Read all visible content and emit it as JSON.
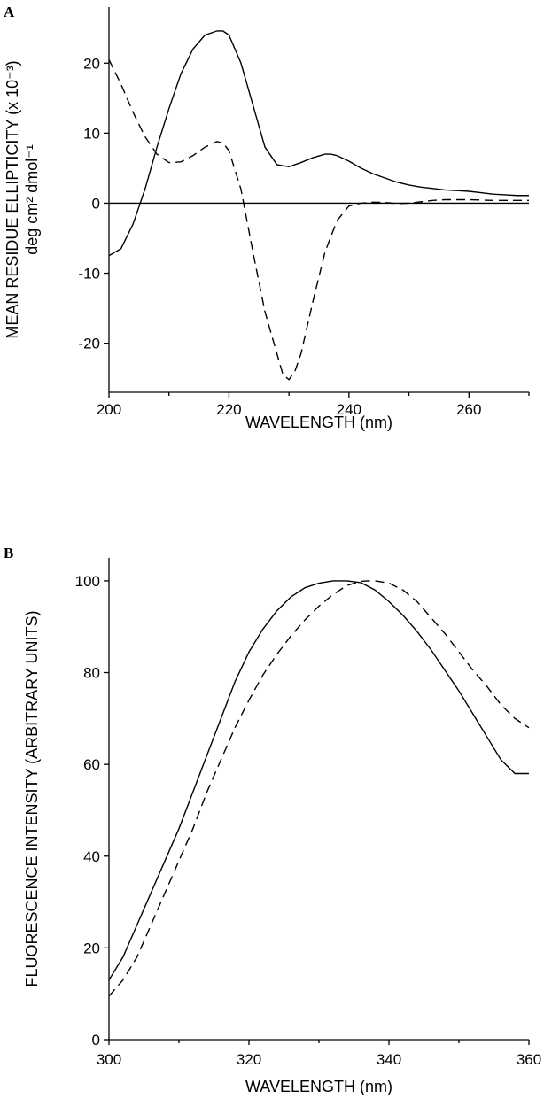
{
  "chart_data": [
    {
      "type": "line",
      "panel_label": "A",
      "xlabel": "WAVELENGTH (nm)",
      "ylabel_line1": "MEAN RESIDUE ELLIPTICITY (x 10⁻³)",
      "ylabel_line2": "deg cm² dmol⁻¹",
      "xlim": [
        200,
        270
      ],
      "ylim": [
        -27,
        28
      ],
      "xticks": [
        200,
        220,
        240,
        260
      ],
      "xticks_minor": [
        210,
        230,
        250,
        270
      ],
      "yticks": [
        20,
        10,
        0,
        -10,
        -20
      ],
      "ytick_labels": [
        "20",
        "10",
        "0",
        "-10",
        "-20"
      ],
      "zero_line": true,
      "series": [
        {
          "style": "solid",
          "x": [
            200,
            202,
            204,
            206,
            208,
            210,
            212,
            214,
            216,
            218,
            219,
            220,
            222,
            224,
            226,
            228,
            230,
            232,
            234,
            236,
            237,
            238,
            240,
            242,
            244,
            246,
            248,
            250,
            252,
            254,
            256,
            258,
            260,
            262,
            264,
            266,
            268,
            270
          ],
          "y": [
            -7.5,
            -6.5,
            -3,
            2,
            8,
            13.5,
            18.5,
            22,
            24,
            24.6,
            24.6,
            24,
            20,
            14,
            8,
            5.5,
            5.2,
            5.8,
            6.5,
            7,
            7,
            6.8,
            6,
            5,
            4.2,
            3.6,
            3,
            2.6,
            2.3,
            2.1,
            1.9,
            1.8,
            1.7,
            1.5,
            1.3,
            1.2,
            1.1,
            1.1
          ]
        },
        {
          "style": "dashed",
          "x": [
            200,
            202,
            204,
            206,
            208,
            210,
            212,
            214,
            216,
            218,
            219,
            220,
            222,
            224,
            226,
            228,
            229,
            230,
            231,
            232,
            234,
            236,
            238,
            240,
            242,
            244,
            246,
            248,
            250,
            252,
            254,
            256,
            258,
            260,
            262,
            264,
            266,
            268,
            270
          ],
          "y": [
            20.5,
            17,
            13,
            9.5,
            7,
            5.8,
            5.9,
            6.8,
            8,
            8.8,
            8.6,
            7.5,
            2,
            -7,
            -15.5,
            -21.5,
            -24.5,
            -25.2,
            -24,
            -21.5,
            -14,
            -7,
            -2.5,
            -0.4,
            0,
            0.15,
            0.1,
            -0.05,
            0,
            0.2,
            0.4,
            0.5,
            0.5,
            0.5,
            0.45,
            0.4,
            0.4,
            0.4,
            0.4
          ]
        }
      ]
    },
    {
      "type": "line",
      "panel_label": "B",
      "xlabel": "WAVELENGTH (nm)",
      "ylabel": "FLUORESCENCE INTENSITY (ARBITRARY UNITS)",
      "xlim": [
        300,
        360
      ],
      "ylim": [
        0,
        105
      ],
      "xticks": [
        300,
        320,
        340,
        360
      ],
      "xticks_minor": [
        310,
        330,
        350
      ],
      "yticks": [
        0,
        20,
        40,
        60,
        80,
        100
      ],
      "ytick_labels": [
        "0",
        "20",
        "40",
        "60",
        "80",
        "100"
      ],
      "series": [
        {
          "style": "solid",
          "x": [
            300,
            302,
            304,
            306,
            308,
            310,
            312,
            314,
            316,
            318,
            320,
            322,
            324,
            326,
            328,
            330,
            332,
            333,
            334,
            336,
            338,
            340,
            342,
            344,
            346,
            348,
            350,
            352,
            354,
            356,
            358,
            360
          ],
          "y": [
            13,
            18,
            25,
            32,
            39,
            46,
            54,
            62,
            70,
            78,
            84.5,
            89.5,
            93.5,
            96.5,
            98.5,
            99.5,
            100,
            100,
            100,
            99.6,
            98,
            95.5,
            92.5,
            89,
            85,
            80.5,
            76,
            71,
            66,
            61,
            58,
            58
          ]
        },
        {
          "style": "dashed",
          "x": [
            300,
            302,
            304,
            306,
            308,
            310,
            312,
            314,
            316,
            318,
            320,
            322,
            324,
            326,
            328,
            330,
            332,
            334,
            336,
            337,
            338,
            340,
            342,
            344,
            346,
            348,
            350,
            352,
            354,
            356,
            358,
            360
          ],
          "y": [
            9.5,
            13,
            18,
            25,
            32,
            39,
            46,
            54,
            61,
            68,
            74,
            79.5,
            84,
            88,
            91.5,
            94.5,
            97,
            99,
            99.9,
            100,
            100,
            99.5,
            98,
            95.5,
            92,
            88.5,
            84.5,
            80.5,
            77,
            73,
            70,
            68
          ]
        }
      ]
    }
  ]
}
